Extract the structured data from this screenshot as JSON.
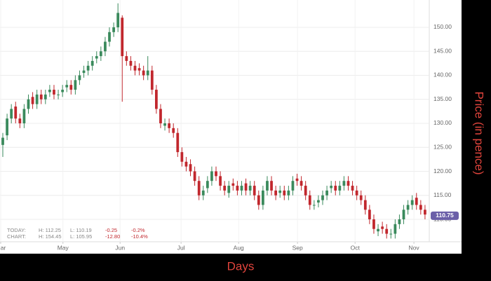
{
  "chart_data": {
    "type": "candlestick",
    "y_label": "Price (in pence)",
    "x_label": "Days",
    "up_color": "#3a8a5c",
    "down_color": "#c1272d",
    "grid": true,
    "xlim": [
      -0.66,
      100
    ],
    "ylim": [
      105.33,
      155.69
    ],
    "yticks": [
      {
        "value": 110,
        "label": "110.00"
      },
      {
        "value": 115,
        "label": "115.00"
      },
      {
        "value": 120,
        "label": "120.00"
      },
      {
        "value": 125,
        "label": "125.00"
      },
      {
        "value": 130,
        "label": "130.00"
      },
      {
        "value": 135,
        "label": "135.00"
      },
      {
        "value": 140,
        "label": "140.00"
      },
      {
        "value": 145,
        "label": "145.00"
      },
      {
        "value": 150,
        "label": "150.00"
      }
    ],
    "xticks": [
      {
        "value": -0.5,
        "label": "Mar"
      },
      {
        "value": 14.1,
        "label": "May"
      },
      {
        "value": 27.5,
        "label": "Jun"
      },
      {
        "value": 41.8,
        "label": "Jul"
      },
      {
        "value": 55.3,
        "label": "Aug"
      },
      {
        "value": 69.1,
        "label": "Sep"
      },
      {
        "value": 82.6,
        "label": "Oct"
      },
      {
        "value": 96.4,
        "label": "Nov"
      }
    ],
    "last_price": 110.75,
    "last_price_color": "#6b5fa8",
    "open": [
      125.5,
      127.5,
      131,
      133.5,
      131,
      130,
      133,
      135.5,
      134,
      136,
      135,
      136.5,
      137,
      136,
      136.5,
      137.5,
      138,
      137,
      139,
      140.5,
      141,
      142,
      143.5,
      144,
      145,
      147,
      149,
      150,
      152,
      144,
      143,
      142,
      141.5,
      141,
      140,
      141,
      137,
      133,
      129.5,
      130,
      129,
      128,
      124,
      122,
      121.5,
      120,
      118,
      115,
      116.5,
      118,
      120,
      119,
      117,
      115.5,
      117.5,
      117,
      116,
      117.5,
      116,
      117,
      115,
      113,
      116,
      118,
      116,
      115.5,
      116,
      115,
      116,
      118.5,
      118,
      117,
      115,
      113,
      113.5,
      114,
      115,
      116.5,
      117,
      116,
      117,
      118,
      117,
      116,
      115,
      114,
      112,
      110,
      107.5,
      108.5,
      108,
      107,
      107,
      109,
      110,
      112,
      113,
      114.5,
      113,
      112
    ],
    "high": [
      128,
      132,
      134,
      134.5,
      132,
      134,
      136,
      136.5,
      137,
      137,
      137,
      138,
      138,
      137,
      138,
      139,
      139,
      140,
      141,
      142,
      143,
      144,
      145,
      146,
      148,
      150,
      151,
      155,
      152.5,
      145,
      144,
      143,
      142.5,
      142,
      144,
      142,
      138,
      134,
      131,
      131,
      130,
      129,
      125,
      123,
      122.5,
      121,
      119,
      117,
      119,
      121,
      121,
      120,
      118,
      118,
      118.5,
      118,
      118,
      118.5,
      118,
      118,
      116,
      117,
      119,
      119,
      117,
      117,
      117,
      117,
      119,
      119.5,
      119,
      118,
      116,
      114,
      115,
      116,
      117,
      118,
      118,
      118,
      119,
      119,
      118,
      117,
      116,
      115,
      113,
      111,
      109,
      109.5,
      109,
      108,
      110,
      111,
      113,
      114,
      115,
      115.5,
      114,
      113
    ],
    "low": [
      123,
      126.5,
      130,
      130,
      129,
      129,
      132,
      133,
      133,
      134,
      134,
      135.5,
      135,
      135,
      135.5,
      136.5,
      136,
      136,
      138,
      139.5,
      140,
      141,
      142.5,
      143,
      144,
      146,
      148,
      149,
      134.5,
      142,
      141,
      140,
      140,
      139,
      139,
      136,
      132,
      129,
      128.5,
      128,
      127,
      123,
      121,
      120,
      119,
      117,
      114,
      114,
      115.5,
      117,
      118,
      116,
      115,
      114.5,
      116,
      115,
      115,
      115,
      115,
      114,
      112,
      112,
      115,
      115,
      114,
      114.5,
      114,
      114,
      115,
      117,
      116,
      114,
      112,
      112,
      112.5,
      113,
      114,
      115.5,
      115,
      115,
      116,
      116,
      115,
      114,
      113,
      111,
      109,
      107,
      106.5,
      107,
      106,
      106,
      106,
      108,
      109,
      111,
      112,
      112,
      111,
      110
    ],
    "close": [
      127,
      131,
      133,
      131,
      130,
      133,
      135,
      134,
      136,
      135,
      136,
      137,
      136,
      136,
      137,
      138,
      137,
      139,
      140,
      141,
      142,
      143,
      144,
      145,
      147,
      149,
      150,
      153,
      144,
      143,
      142,
      141,
      141,
      140,
      141,
      137,
      133,
      130,
      130,
      129,
      128,
      124,
      122,
      121,
      120,
      118,
      115,
      116,
      118,
      120,
      119,
      117,
      116,
      117,
      117,
      116,
      117,
      116,
      117,
      115,
      113,
      116,
      118,
      116,
      115,
      116,
      115,
      116,
      118,
      118,
      117,
      115,
      113,
      113,
      114,
      115,
      116,
      117,
      116,
      117,
      118,
      117,
      116,
      115,
      114,
      112,
      110,
      108,
      108,
      108,
      107,
      107,
      109,
      110,
      112,
      113,
      114,
      113,
      112,
      111
    ],
    "info": {
      "today": {
        "label": "TODAY:",
        "high": "H: 112.25",
        "low": "L: 110.19",
        "change": "-0.25",
        "pct": "-0.2%"
      },
      "chart": {
        "label": "CHART:",
        "high": "H: 154.45",
        "low": "L: 105.95",
        "change": "-12.80",
        "pct": "-10.4%"
      }
    }
  }
}
